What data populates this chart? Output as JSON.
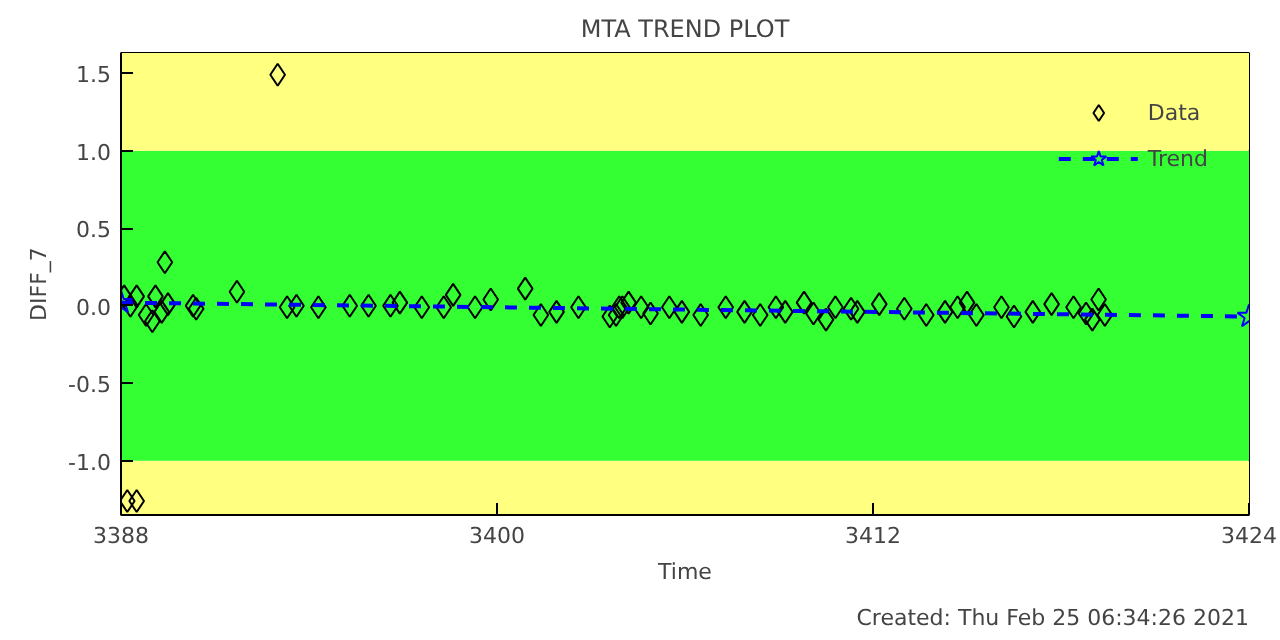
{
  "chart_data": {
    "type": "scatter",
    "title": "MTA TREND PLOT",
    "xlabel": "Time",
    "ylabel": "DIFF_7",
    "annotations": [
      "Created: Thu Feb 25 06:34:26 2021"
    ],
    "xlim": [
      3388,
      3424
    ],
    "xticks": [
      3388,
      3400,
      3412,
      3424
    ],
    "ylim": [
      -1.35,
      1.63
    ],
    "yticks": [
      {
        "value": -1,
        "label": "-1.0"
      },
      {
        "value": -0.5,
        "label": "-0.5"
      },
      {
        "value": 0,
        "label": "0.0"
      },
      {
        "value": 0.5,
        "label": "0.5"
      },
      {
        "value": 1,
        "label": "1.0"
      },
      {
        "value": 1.5,
        "label": "1.5"
      }
    ],
    "bands": [
      {
        "axis": "y",
        "from": -1.35,
        "to": -1,
        "color": "#ffff80"
      },
      {
        "axis": "y",
        "from": -1,
        "to": 1,
        "color": "#33ff33"
      },
      {
        "axis": "y",
        "from": 1,
        "to": 1.63,
        "color": "#ffff80"
      }
    ],
    "grid": false,
    "legend": "top right",
    "series": [
      {
        "name": "Data",
        "marker": "diamond",
        "color": "#000000",
        "x": [
          3388.1,
          3388.2,
          3388.5,
          3388.3,
          3388.5,
          3388.8,
          3389.0,
          3389.1,
          3389.4,
          3389.3,
          3389.5,
          3390.3,
          3390.4,
          3391.7,
          3393.0,
          3393.3,
          3393.6,
          3394.3,
          3395.3,
          3395.9,
          3396.6,
          3396.9,
          3397.6,
          3398.3,
          3398.6,
          3399.3,
          3399.8,
          3400.9,
          3401.4,
          3401.9,
          3402.6,
          3403.6,
          3403.8,
          3403.9,
          3404.0,
          3404.2,
          3404.6,
          3404.9,
          3405.5,
          3405.9,
          3406.5,
          3407.3,
          3407.9,
          3408.4,
          3408.9,
          3409.2,
          3409.8,
          3410.1,
          3410.5,
          3410.8,
          3411.3,
          3411.5,
          3412.2,
          3413.0,
          3413.7,
          3414.3,
          3414.7,
          3415.0,
          3415.3,
          3416.1,
          3416.5,
          3417.1,
          3417.7,
          3418.4,
          3418.8,
          3419.0,
          3419.2,
          3419.4
        ],
        "values": [
          0.06,
          -1.26,
          -1.26,
          0.0,
          0.06,
          -0.06,
          -0.1,
          0.06,
          0.28,
          -0.04,
          0.01,
          0.0,
          -0.02,
          0.09,
          1.49,
          -0.01,
          0.0,
          -0.01,
          0.0,
          0.0,
          0.0,
          0.02,
          -0.01,
          -0.01,
          0.07,
          -0.01,
          0.04,
          0.11,
          -0.06,
          -0.04,
          -0.01,
          -0.07,
          -0.06,
          -0.01,
          -0.01,
          0.02,
          -0.01,
          -0.05,
          -0.01,
          -0.04,
          -0.06,
          -0.01,
          -0.04,
          -0.06,
          -0.01,
          -0.04,
          0.02,
          -0.05,
          -0.09,
          -0.01,
          -0.02,
          -0.04,
          0.01,
          -0.02,
          -0.06,
          -0.04,
          -0.01,
          0.02,
          -0.06,
          -0.01,
          -0.07,
          -0.04,
          0.01,
          -0.01,
          -0.05,
          -0.09,
          0.04,
          -0.06
        ]
      },
      {
        "name": "Trend",
        "type": "line",
        "marker": "star",
        "line_style": "dashed",
        "color": "#0000ff",
        "x": [
          3388,
          3424
        ],
        "values": [
          0.02,
          -0.07
        ]
      }
    ]
  }
}
